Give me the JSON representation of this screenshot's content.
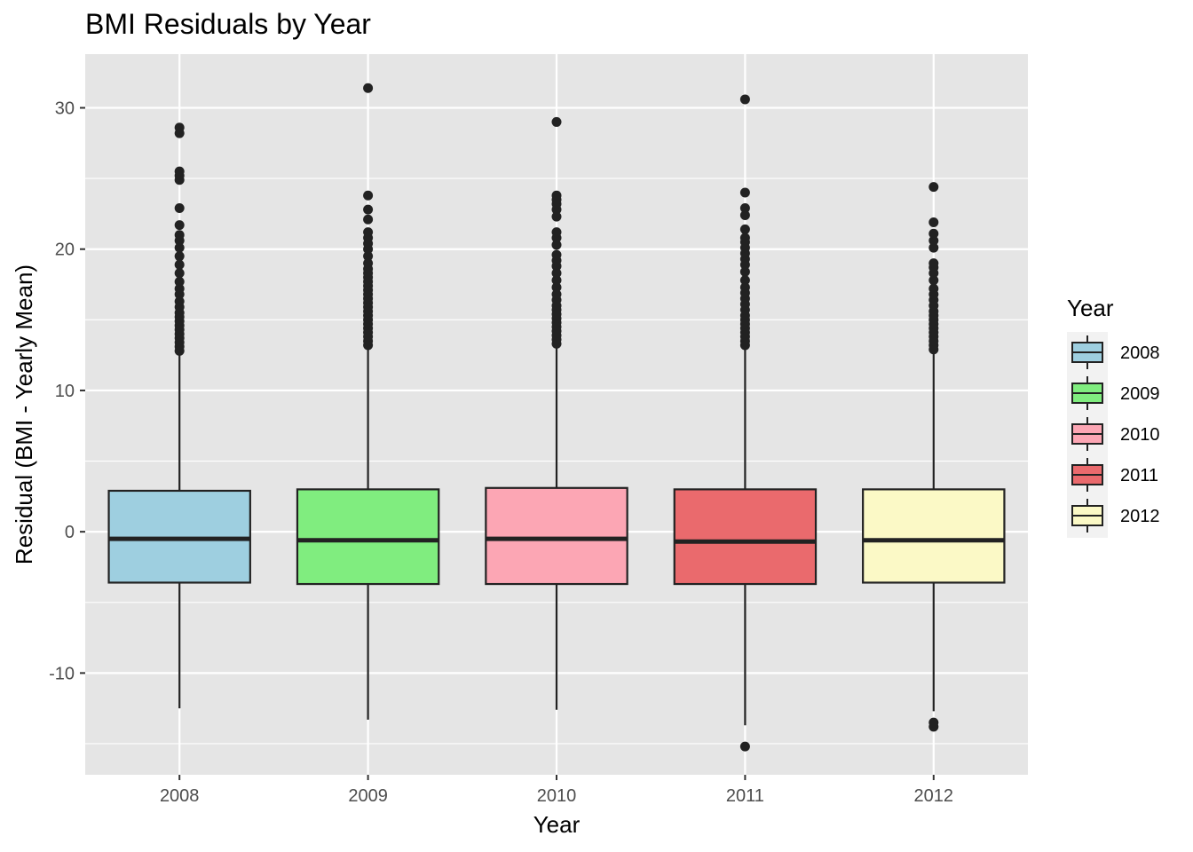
{
  "chart_data": {
    "type": "box",
    "title": "BMI Residuals by Year",
    "xlabel": "Year",
    "ylabel": "Residual (BMI - Yearly Mean)",
    "ylim": [
      -17.2,
      33.8
    ],
    "y_ticks": [
      -10,
      0,
      10,
      20,
      30
    ],
    "y_tick_labels": [
      "-10",
      "0",
      "10",
      "20",
      "30"
    ],
    "grid": true,
    "legend": {
      "title": "Year",
      "position": "right"
    },
    "categories": [
      "2008",
      "2009",
      "2010",
      "2011",
      "2012"
    ],
    "boxes": [
      {
        "name": "2008",
        "color": "#9ecfe0",
        "lower_whisker": -12.5,
        "q1": -3.6,
        "median": -0.5,
        "q3": 2.9,
        "upper_whisker": 12.7,
        "outliers": [
          12.8,
          13.1,
          13.4,
          13.7,
          14.0,
          14.3,
          14.6,
          14.9,
          15.2,
          15.5,
          15.9,
          16.3,
          16.8,
          17.2,
          17.7,
          18.3,
          18.9,
          19.5,
          20.1,
          20.6,
          21.0,
          21.7,
          22.9,
          24.9,
          25.2,
          25.5,
          28.2,
          28.6
        ]
      },
      {
        "name": "2009",
        "color": "#80ed7f",
        "lower_whisker": -13.3,
        "q1": -3.7,
        "median": -0.6,
        "q3": 3.0,
        "upper_whisker": 13.1,
        "outliers": [
          13.2,
          13.5,
          13.8,
          14.1,
          14.4,
          14.7,
          15.0,
          15.3,
          15.6,
          15.9,
          16.2,
          16.5,
          16.8,
          17.1,
          17.4,
          17.7,
          18.0,
          18.3,
          18.6,
          19.0,
          19.5,
          20.0,
          20.4,
          20.8,
          21.2,
          22.1,
          22.8,
          23.8,
          31.4
        ]
      },
      {
        "name": "2010",
        "color": "#fca6b4",
        "lower_whisker": -12.6,
        "q1": -3.7,
        "median": -0.5,
        "q3": 3.1,
        "upper_whisker": 13.2,
        "outliers": [
          13.3,
          13.6,
          13.9,
          14.2,
          14.5,
          14.8,
          15.1,
          15.4,
          15.7,
          16.0,
          16.4,
          16.8,
          17.3,
          17.8,
          18.3,
          18.8,
          19.2,
          19.6,
          20.3,
          20.8,
          21.2,
          22.3,
          22.8,
          23.2,
          23.5,
          23.8,
          29.0
        ]
      },
      {
        "name": "2011",
        "color": "#ea6a6d",
        "lower_whisker": -13.7,
        "q1": -3.7,
        "median": -0.7,
        "q3": 3.0,
        "upper_whisker": 13.1,
        "outliers": [
          -15.2,
          13.2,
          13.5,
          13.8,
          14.1,
          14.4,
          14.7,
          15.0,
          15.3,
          15.7,
          16.1,
          16.5,
          16.9,
          17.3,
          17.8,
          18.4,
          18.9,
          19.3,
          19.7,
          20.1,
          20.5,
          20.8,
          21.4,
          22.4,
          22.9,
          24.0,
          30.6
        ]
      },
      {
        "name": "2012",
        "color": "#fbf9c6",
        "lower_whisker": -12.7,
        "q1": -3.6,
        "median": -0.6,
        "q3": 3.0,
        "upper_whisker": 12.8,
        "outliers": [
          -13.8,
          -13.5,
          12.9,
          13.2,
          13.5,
          13.8,
          14.1,
          14.4,
          14.7,
          15.0,
          15.3,
          15.6,
          16.0,
          16.4,
          16.8,
          17.2,
          17.8,
          18.3,
          18.7,
          19.0,
          20.1,
          20.6,
          21.1,
          21.9,
          24.4
        ]
      }
    ]
  }
}
